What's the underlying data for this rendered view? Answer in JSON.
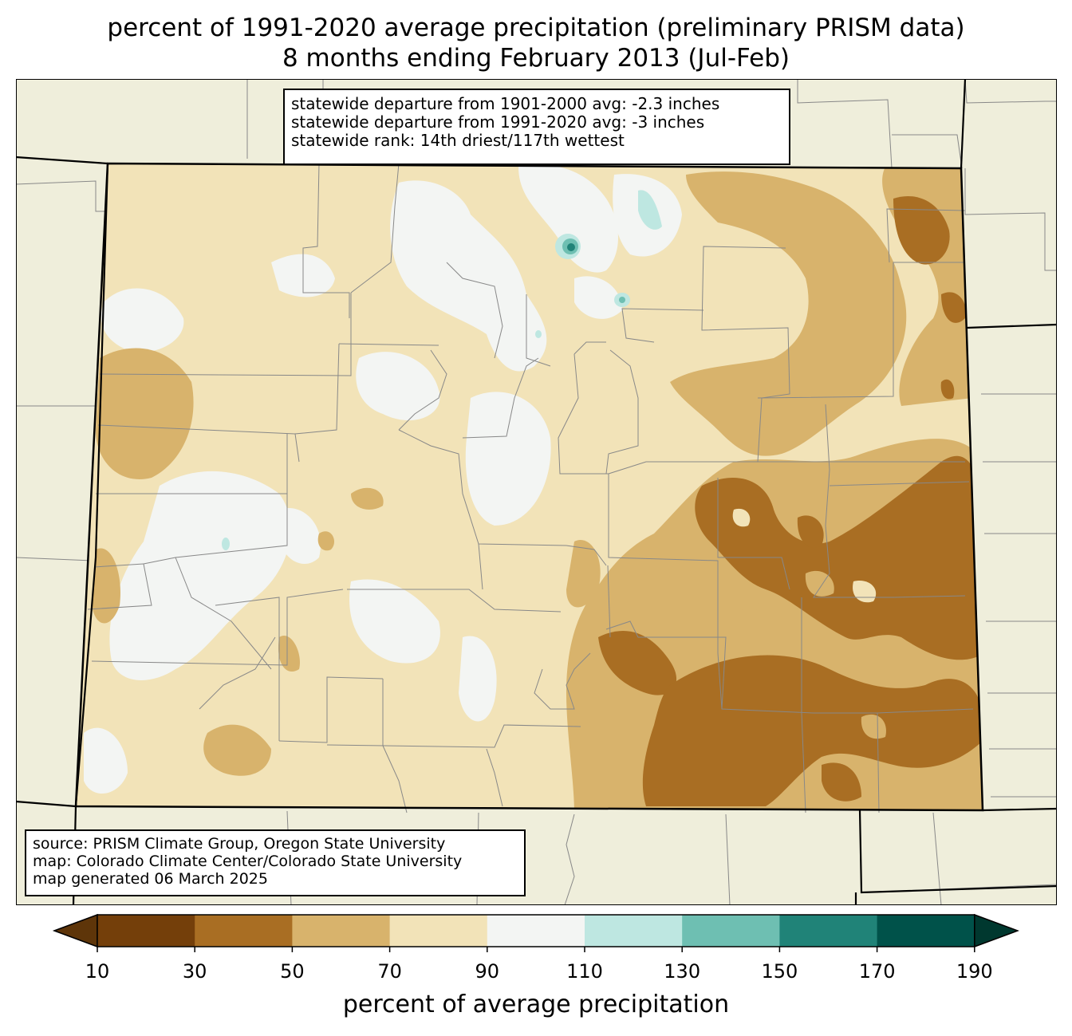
{
  "title": {
    "line1": "percent of 1991-2020 average precipitation (preliminary PRISM data)",
    "line2": "8 months ending February 2013 (Jul-Feb)"
  },
  "stats": {
    "line1": "statewide departure from 1901-2000 avg: -2.3 inches",
    "line2": "statewide departure from 1991-2020 avg: -3 inches",
    "line3": "statewide rank: 14th driest/117th wettest"
  },
  "source": {
    "line1": "source: PRISM Climate Group, Oregon State University",
    "line2": "map: Colorado Climate Center/Colorado State University",
    "line3": "map generated 06 March 2025"
  },
  "colorbar": {
    "label": "percent of average precipitation",
    "ticks": [
      "10",
      "30",
      "50",
      "70",
      "90",
      "110",
      "130",
      "150",
      "170",
      "190"
    ],
    "colors": [
      "#5e3509",
      "#743f0a",
      "#a96e23",
      "#d8b36c",
      "#f2e3b8",
      "#f3f5f3",
      "#bee7e1",
      "#6ebfb2",
      "#208378",
      "#00524a",
      "#00382f"
    ]
  },
  "map_colors": {
    "background_land": "#efeedb",
    "state_outline": "#000000",
    "county_lines": "#808080"
  }
}
